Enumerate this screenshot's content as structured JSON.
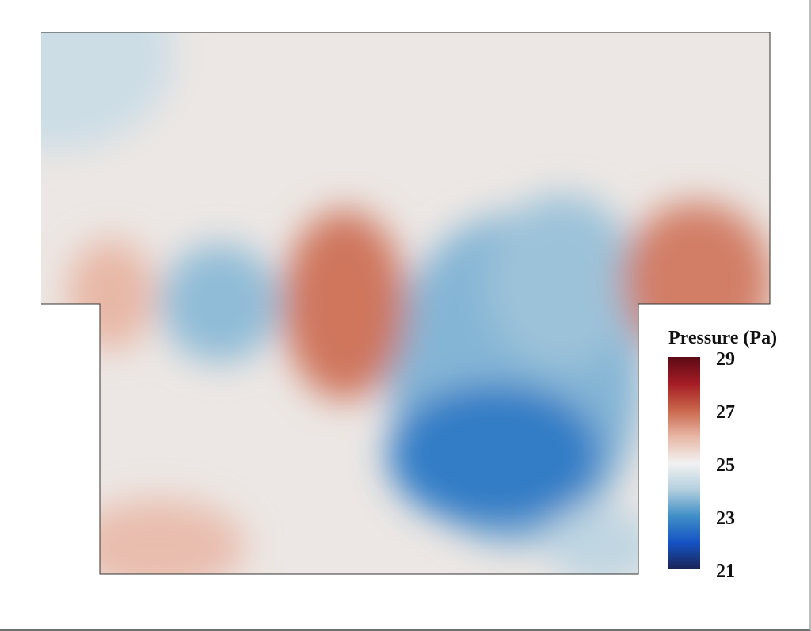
{
  "chart_data": {
    "type": "heatmap",
    "title": "",
    "variable": "Pressure",
    "unit": "Pa",
    "colorbar": {
      "title": "Pressure (Pa)",
      "min": 21,
      "max": 29,
      "ticks": [
        29,
        27,
        25,
        23,
        21
      ],
      "colormap": [
        "#1b2456",
        "#1553c4",
        "#3f8fc7",
        "#b3cfde",
        "#f2f2f2",
        "#e8b7a6",
        "#c9664b",
        "#a51c24",
        "#5c0a15"
      ],
      "placement": "right"
    },
    "domain_shape": "T-shaped region: wide upper section, narrower lower section",
    "grid": false,
    "features": [
      {
        "name": "upper-left-low",
        "value": 24.4
      },
      {
        "name": "left-high",
        "value": 26.0
      },
      {
        "name": "left-circular-low",
        "value": 23.7
      },
      {
        "name": "center-high",
        "value": 26.8
      },
      {
        "name": "right-upper-low",
        "value": 23.8
      },
      {
        "name": "bottom-center-low",
        "value": 22.7
      },
      {
        "name": "right-corner-high",
        "value": 26.7
      },
      {
        "name": "bottom-left-high",
        "value": 25.9
      },
      {
        "name": "bottom-right-low",
        "value": 24.2
      }
    ]
  }
}
